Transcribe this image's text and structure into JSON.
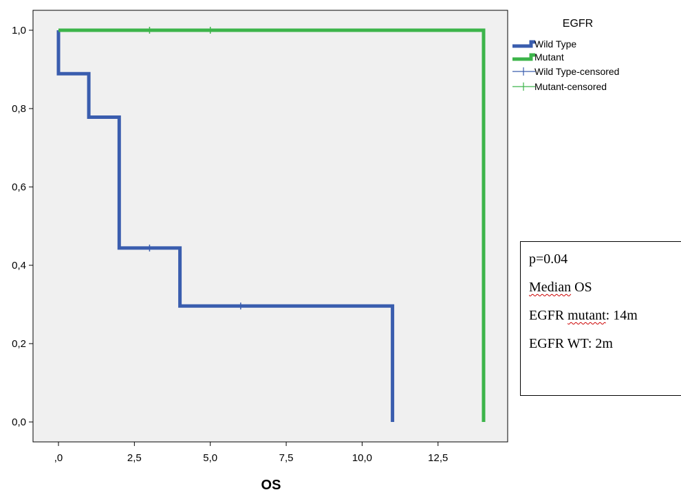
{
  "chart_data": {
    "type": "line",
    "subtype": "kaplan-meier-survival",
    "xlabel": "OS",
    "ylabel": "",
    "xlim": [
      0,
      15
    ],
    "ylim": [
      0,
      1
    ],
    "x_ticks": [
      {
        "value": 0,
        "label": ",0"
      },
      {
        "value": 2.5,
        "label": "2,5"
      },
      {
        "value": 5,
        "label": "5,0"
      },
      {
        "value": 7.5,
        "label": "7,5"
      },
      {
        "value": 10,
        "label": "10,0"
      },
      {
        "value": 12.5,
        "label": "12,5"
      }
    ],
    "y_ticks": [
      {
        "value": 0,
        "label": "0,0"
      },
      {
        "value": 0.2,
        "label": "0,2"
      },
      {
        "value": 0.4,
        "label": "0,4"
      },
      {
        "value": 0.6,
        "label": "0,6"
      },
      {
        "value": 0.8,
        "label": "0,8"
      },
      {
        "value": 1.0,
        "label": "1,0"
      }
    ],
    "grid": false,
    "legend_title": "EGFR",
    "legend_placement": "top-right, outside plot",
    "series": [
      {
        "name": "Wild Type",
        "color": "#3A5DAE",
        "steps": [
          [
            0,
            1.0
          ],
          [
            0,
            0.889
          ],
          [
            1,
            0.889
          ],
          [
            1,
            0.778
          ],
          [
            2,
            0.778
          ],
          [
            2,
            0.444
          ],
          [
            4,
            0.444
          ],
          [
            4,
            0.296
          ],
          [
            11,
            0.296
          ],
          [
            11,
            0.0
          ]
        ],
        "censored": [
          [
            3,
            0.444
          ],
          [
            6,
            0.296
          ]
        ]
      },
      {
        "name": "Mutant",
        "color": "#3CB44A",
        "steps": [
          [
            0,
            1.0
          ],
          [
            14,
            1.0
          ],
          [
            14,
            0.0
          ]
        ],
        "censored": [
          [
            3,
            1.0
          ],
          [
            5,
            1.0
          ]
        ]
      }
    ],
    "legend_entries": [
      {
        "label": "Wild Type",
        "kind": "line",
        "color": "#3A5DAE"
      },
      {
        "label": "Mutant",
        "kind": "line",
        "color": "#3CB44A"
      },
      {
        "label": "Wild Type-censored",
        "kind": "censor",
        "color": "#3A5DAE"
      },
      {
        "label": "Mutant-censored",
        "kind": "censor",
        "color": "#3CB44A"
      }
    ]
  },
  "annotation": {
    "p_value": "p=0.04",
    "median_title": "Median OS",
    "mutant_line": {
      "prefix": "EGFR ",
      "word": "mutant",
      "suffix": ": 14m"
    },
    "wt_line": "EGFR WT: 2m"
  },
  "colors": {
    "plot_background": "#F0F0F0",
    "axis": "#000000"
  }
}
